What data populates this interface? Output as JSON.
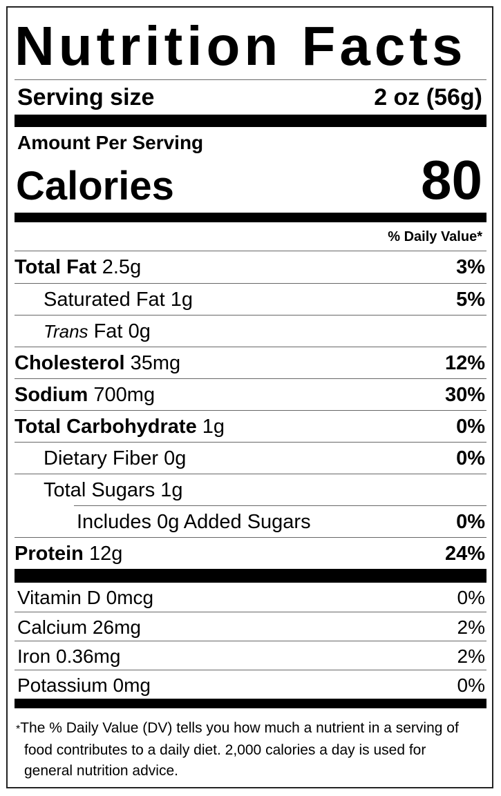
{
  "title": "Nutrition Facts",
  "serving": {
    "label": "Serving size",
    "value": "2 oz (56g)"
  },
  "amount_per_serving": "Amount Per Serving",
  "calories": {
    "label": "Calories",
    "value": 80
  },
  "dv_header": "% Daily Value*",
  "nutrients": [
    {
      "name": "Total Fat",
      "amount": "2.5g",
      "dv": "3%",
      "sub": [
        {
          "name": "Saturated Fat",
          "amount": "1g",
          "dv": "5%"
        },
        {
          "prefix": "Trans",
          "name": "Fat",
          "amount": "0g"
        }
      ]
    },
    {
      "name": "Cholesterol",
      "amount": "35mg",
      "dv": "12%"
    },
    {
      "name": "Sodium",
      "amount": "700mg",
      "dv": "30%"
    },
    {
      "name": "Total Carbohydrate",
      "amount": "1g",
      "dv": "0%",
      "sub": [
        {
          "name": "Dietary Fiber",
          "amount": "0g",
          "dv": "0%"
        },
        {
          "name": "Total Sugars",
          "amount": "1g",
          "sub": [
            {
              "name": "Includes 0g Added Sugars",
              "dv": "0%"
            }
          ]
        }
      ]
    },
    {
      "name": "Protein",
      "amount": "12g",
      "dv": "24%"
    }
  ],
  "vitamins": [
    {
      "name": "Vitamin D",
      "amount": "0mcg",
      "dv": "0%"
    },
    {
      "name": "Calcium",
      "amount": "26mg",
      "dv": "2%"
    },
    {
      "name": "Iron",
      "amount": "0.36mg",
      "dv": "2%"
    },
    {
      "name": "Potassium",
      "amount": "0mg",
      "dv": "0%"
    }
  ],
  "footnote": {
    "mark": "*",
    "text": "The % Daily Value (DV) tells you how much a nutrient in a serving of food contributes to a daily diet. 2,000 calories a day is used for general nutrition advice."
  }
}
